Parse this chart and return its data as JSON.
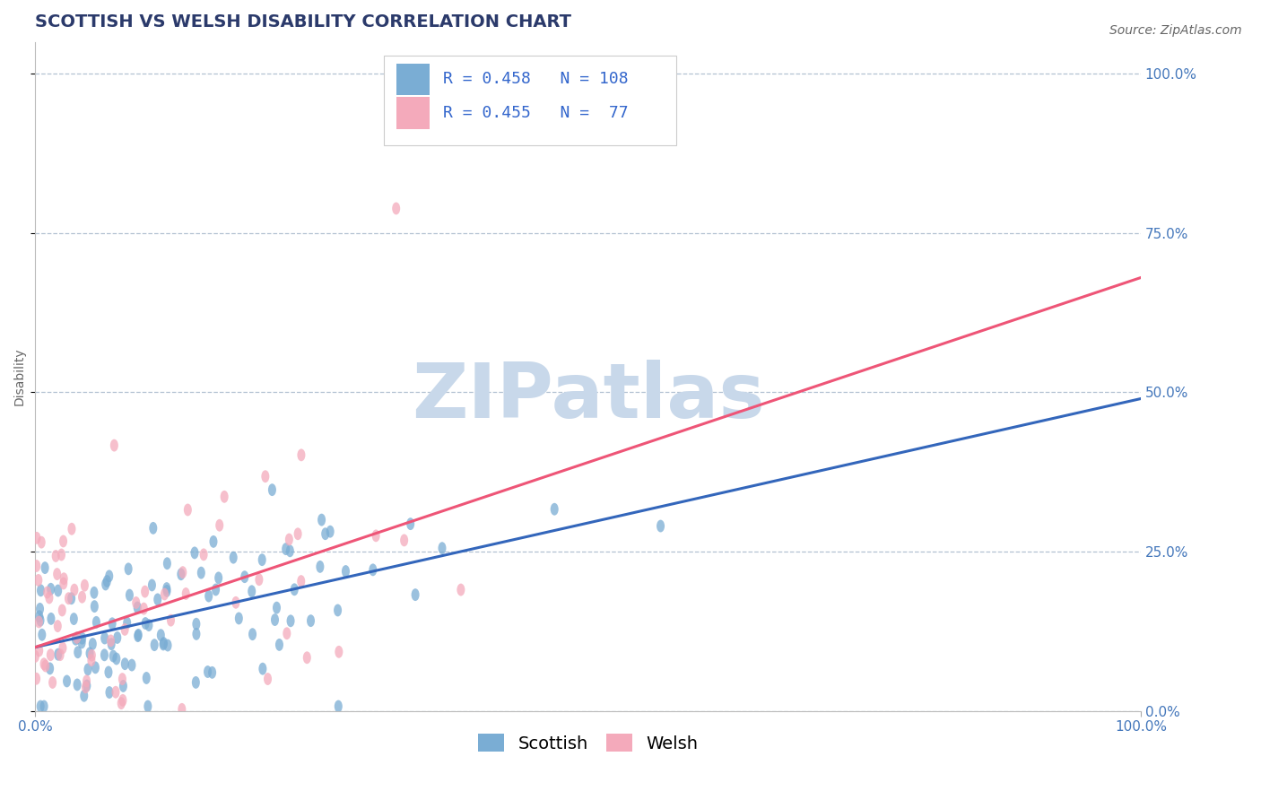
{
  "title": "SCOTTISH VS WELSH DISABILITY CORRELATION CHART",
  "source": "Source: ZipAtlas.com",
  "ylabel": "Disability",
  "xlim": [
    0,
    1
  ],
  "ylim": [
    0.0,
    1.05
  ],
  "xtick_labels": [
    "0.0%",
    "100.0%"
  ],
  "ytick_labels": [
    "0.0%",
    "25.0%",
    "50.0%",
    "75.0%",
    "100.0%"
  ],
  "ytick_values": [
    0.0,
    0.25,
    0.5,
    0.75,
    1.0
  ],
  "scottish_R": 0.458,
  "scottish_N": 108,
  "welsh_R": 0.455,
  "welsh_N": 77,
  "scottish_color": "#7AADD4",
  "welsh_color": "#F4AABB",
  "scottish_line_color": "#3366BB",
  "welsh_line_color": "#EE5577",
  "watermark": "ZIPatlas",
  "watermark_color": "#C8D8EA",
  "title_color": "#2B3A6B",
  "legend_R_color": "#3366CC",
  "tick_color": "#4477BB",
  "background_color": "#FFFFFF",
  "grid_color": "#AABBCC",
  "title_fontsize": 14,
  "axis_label_fontsize": 10,
  "tick_label_fontsize": 11,
  "legend_fontsize": 13,
  "source_fontsize": 10
}
